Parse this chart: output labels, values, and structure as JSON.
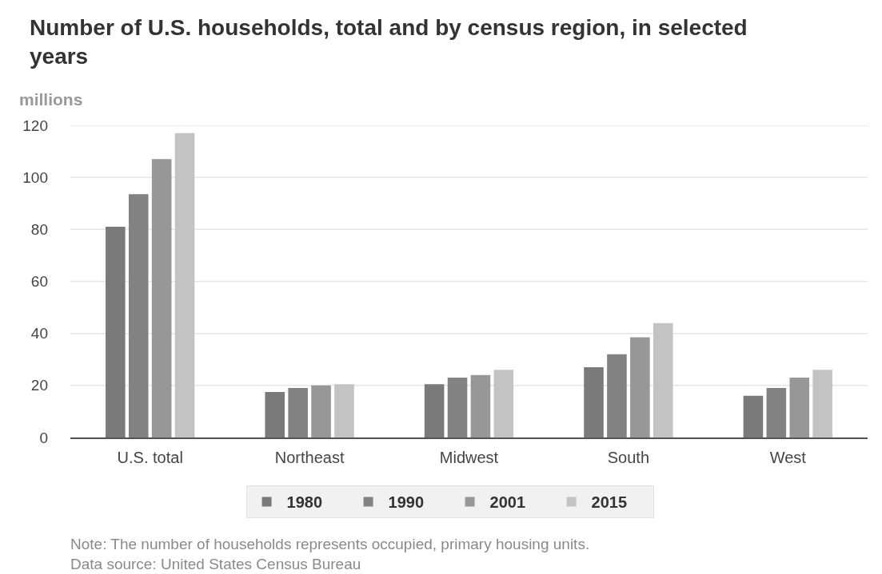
{
  "chart_data": {
    "type": "bar",
    "title": "Number of U.S. households, total and by census region, in selected years",
    "ylabel": "millions",
    "categories": [
      "U.S. total",
      "Northeast",
      "Midwest",
      "South",
      "West"
    ],
    "series": [
      {
        "name": "1980",
        "color": "#7a7a7a",
        "values": [
          81,
          17.5,
          20.5,
          27,
          16
        ]
      },
      {
        "name": "1990",
        "color": "#828282",
        "values": [
          93.5,
          19,
          23,
          32,
          19
        ]
      },
      {
        "name": "2001",
        "color": "#979797",
        "values": [
          107,
          20,
          24,
          38.5,
          23
        ]
      },
      {
        "name": "2015",
        "color": "#c3c3c3",
        "values": [
          117,
          20.5,
          26,
          44,
          26
        ]
      }
    ],
    "ylim": [
      0,
      120
    ],
    "yticks": [
      0,
      20,
      40,
      60,
      80,
      100,
      120
    ],
    "grid": "y",
    "legend": "bottom",
    "annotations": [
      "Note: The number of households represents occupied, primary housing units.",
      "Data source: United States Census Bureau"
    ]
  }
}
